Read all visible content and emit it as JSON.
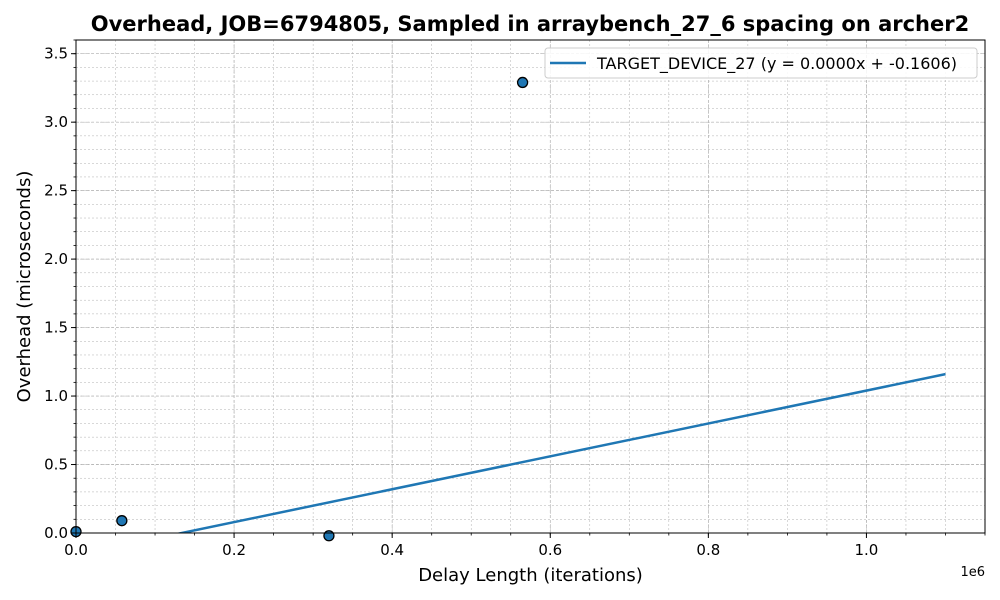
{
  "chart_data": {
    "type": "scatter",
    "title": "Overhead, JOB=6794805, Sampled in arraybench_27_6 spacing on archer2",
    "xlabel": "Delay Length (iterations)",
    "ylabel": "Overhead (microseconds)",
    "x_offset_label": "1e6",
    "xlim": [
      0,
      1150000
    ],
    "ylim": [
      0,
      3.6
    ],
    "x_ticks": [
      0,
      200000,
      400000,
      600000,
      800000,
      1000000
    ],
    "x_tick_labels": [
      "0.0",
      "0.2",
      "0.4",
      "0.6",
      "0.8",
      "1.0"
    ],
    "y_ticks": [
      0,
      0.5,
      1.0,
      1.5,
      2.0,
      2.5,
      3.0,
      3.5
    ],
    "y_tick_labels": [
      "0.0",
      "0.5",
      "1.0",
      "1.5",
      "2.0",
      "2.5",
      "3.0",
      "3.5"
    ],
    "grid": true,
    "legend_position": "top-right",
    "points": [
      {
        "x": 0,
        "y": 0.01
      },
      {
        "x": 58000,
        "y": 0.09
      },
      {
        "x": 320000,
        "y": -0.02
      },
      {
        "x": 565000,
        "y": 3.29
      }
    ],
    "fit_line": {
      "name": "TARGET_DEVICE_27 (y = 0.0000x + -0.1606)",
      "x": [
        0,
        1100000
      ],
      "y": [
        -0.1606,
        1.16
      ]
    },
    "colors": {
      "series": "#1f77b4",
      "marker_edge": "#000000",
      "grid": "#b0b0b0"
    }
  }
}
